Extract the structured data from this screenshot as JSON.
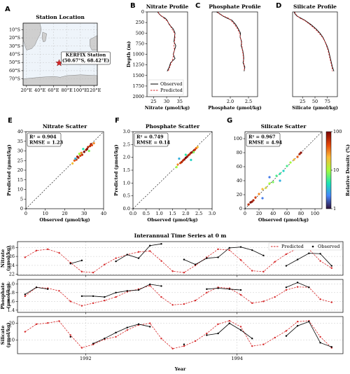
{
  "chart_data": [
    {
      "type": "map",
      "panel": "A",
      "title": "Station Location",
      "station": {
        "lon": 68.42,
        "lat": -50.67
      },
      "annotation": [
        "KERFIX Station",
        "(50.67°S, 68.42°E)"
      ],
      "xlim": [
        15,
        125
      ],
      "ylim": [
        -78,
        -2
      ],
      "xticks": [
        {
          "value": 20,
          "label": "20°E"
        },
        {
          "value": 40,
          "label": "40°E"
        },
        {
          "value": 60,
          "label": "60°E"
        },
        {
          "value": 80,
          "label": "80°E"
        },
        {
          "value": 100,
          "label": "100°E"
        },
        {
          "value": 120,
          "label": "120°E"
        }
      ],
      "yticks": [
        {
          "value": -10,
          "label": "10°S"
        },
        {
          "value": -20,
          "label": "20°S"
        },
        {
          "value": -30,
          "label": "30°S"
        },
        {
          "value": -40,
          "label": "40°S"
        },
        {
          "value": -50,
          "label": "50°S"
        },
        {
          "value": -60,
          "label": "60°S"
        },
        {
          "value": -70,
          "label": "70°S"
        }
      ],
      "color": "#d62728",
      "grid": true
    },
    {
      "type": "profile",
      "panel": "B",
      "title": "Nitrate Profile",
      "xlabel": "Nitrate (μmol/kg)",
      "ylabel": "Depth (m)",
      "y": [
        0,
        50,
        100,
        150,
        200,
        300,
        400,
        500,
        600,
        700,
        800,
        900,
        1000,
        1100,
        1200,
        1300,
        1400
      ],
      "series": [
        {
          "name": "Observed",
          "color": "#000000",
          "dash": false,
          "values": [
            26.5,
            27.2,
            28.0,
            29.5,
            30.2,
            31.0,
            32.5,
            33.2,
            33.0,
            32.8,
            33.5,
            33.0,
            32.5,
            33.2,
            31.5,
            31.0,
            30.2
          ]
        },
        {
          "name": "Predicted",
          "color": "#d62728",
          "dash": true,
          "values": [
            26.8,
            27.0,
            28.2,
            29.0,
            30.0,
            31.2,
            32.0,
            33.0,
            33.2,
            33.0,
            32.8,
            33.0,
            32.6,
            32.4,
            31.8,
            31.2,
            30.6
          ]
        }
      ],
      "xlim": [
        22.5,
        38
      ],
      "xticks": [
        25,
        30,
        35
      ],
      "ylim": [
        0,
        2000
      ],
      "invert_y": true,
      "yticks": [
        0,
        250,
        500,
        750,
        1000,
        1250,
        1500,
        1750,
        2000
      ],
      "legend": "lower left"
    },
    {
      "type": "profile",
      "panel": "C",
      "title": "Phosphate Profile",
      "xlabel": "Phosphate (μmol/kg)",
      "y": [
        0,
        50,
        100,
        150,
        200,
        300,
        400,
        500,
        600,
        700,
        800,
        900,
        1000,
        1100,
        1200,
        1300,
        1400
      ],
      "series": [
        {
          "color": "#000000",
          "dash": false,
          "values": [
            1.62,
            1.72,
            1.8,
            1.92,
            2.05,
            2.15,
            2.22,
            2.28,
            2.27,
            2.31,
            2.3,
            2.34,
            2.36,
            2.37,
            2.35,
            2.4,
            2.38
          ]
        },
        {
          "color": "#d62728",
          "dash": true,
          "values": [
            1.65,
            1.7,
            1.82,
            1.95,
            2.02,
            2.12,
            2.2,
            2.25,
            2.28,
            2.3,
            2.32,
            2.33,
            2.35,
            2.36,
            2.37,
            2.38,
            2.39
          ]
        }
      ],
      "xlim": [
        1.5,
        2.75
      ],
      "xticks": [
        {
          "value": 2,
          "label": "2.0"
        },
        2.5
      ],
      "ylim": [
        0,
        2000
      ],
      "invert_y": true
    },
    {
      "type": "profile",
      "panel": "D",
      "title": "Silicate Profile",
      "xlabel": "Silicate (μmol/kg)",
      "y": [
        0,
        50,
        100,
        150,
        200,
        300,
        400,
        500,
        600,
        700,
        800,
        900,
        1000,
        1100,
        1200,
        1300,
        1400
      ],
      "series": [
        {
          "color": "#000000",
          "dash": false,
          "values": [
            8,
            10,
            14,
            22,
            30,
            42,
            52,
            60,
            66,
            70,
            74,
            77,
            79,
            81,
            83,
            85,
            88
          ]
        },
        {
          "color": "#d62728",
          "dash": true,
          "values": [
            9,
            11,
            15,
            20,
            29,
            40,
            50,
            58,
            65,
            70,
            73,
            76,
            78,
            80,
            82,
            84,
            85
          ]
        }
      ],
      "xlim": [
        5,
        95
      ],
      "xticks": [
        25,
        50,
        75
      ],
      "ylim": [
        0,
        2000
      ],
      "invert_y": true
    },
    {
      "type": "scatter",
      "panel": "E",
      "title": "Nitrate Scatter",
      "xlabel": "Observed (μmol/kg)",
      "ylabel": "Predicted (μmol/kg)",
      "stats": [
        "R² = 0.904",
        "RMSE = 1.23"
      ],
      "x": [
        24,
        25,
        26,
        26.5,
        27,
        28,
        28.5,
        29,
        30,
        31,
        31.5,
        32,
        33,
        33.5,
        34,
        35,
        29.5,
        27.5,
        32.5,
        25.5
      ],
      "y": [
        23.5,
        25,
        25.5,
        27,
        26.5,
        27.5,
        29,
        28,
        29.5,
        30.5,
        31,
        32,
        32.5,
        33.5,
        33,
        34,
        31,
        28.5,
        30,
        26
      ],
      "density": [
        20,
        40,
        60,
        80,
        70,
        50,
        30,
        60,
        100,
        80,
        90,
        70,
        60,
        80,
        50,
        30,
        5,
        10,
        8,
        3
      ],
      "xlim": [
        0,
        40
      ],
      "ylim": [
        0,
        40
      ],
      "xticks": [
        0,
        10,
        20,
        30,
        40
      ],
      "yticks": [
        0,
        5,
        10,
        15,
        20,
        25,
        30,
        35,
        40
      ]
    },
    {
      "type": "scatter",
      "panel": "F",
      "title": "Phosphate Scatter",
      "xlabel": "Observed (μmol/kg)",
      "ylabel": "Predicted (μmol/kg)",
      "stats": [
        "R² = 0.749",
        "RMSE = 0.14"
      ],
      "x": [
        1.65,
        1.7,
        1.8,
        1.85,
        1.9,
        1.95,
        2.0,
        2.05,
        2.1,
        2.15,
        2.2,
        2.25,
        2.3,
        2.35,
        2.4,
        2.45,
        1.75,
        2.0,
        2.2,
        2.3
      ],
      "y": [
        1.62,
        1.72,
        1.78,
        1.82,
        1.88,
        1.92,
        1.98,
        2.02,
        2.08,
        2.12,
        2.18,
        2.2,
        2.25,
        2.3,
        2.36,
        2.4,
        1.95,
        2.1,
        1.9,
        2.2
      ],
      "density": [
        10,
        30,
        50,
        70,
        60,
        80,
        100,
        90,
        70,
        60,
        80,
        90,
        70,
        60,
        40,
        20,
        3,
        5,
        4,
        8
      ],
      "xlim": [
        0,
        3
      ],
      "ylim": [
        0,
        3
      ],
      "xticks": [
        {
          "value": 0,
          "label": "0.0"
        },
        0.5,
        {
          "value": 1,
          "label": "1.0"
        },
        1.5,
        {
          "value": 2,
          "label": "2.0"
        },
        2.5,
        {
          "value": 3,
          "label": "3.0"
        }
      ],
      "yticks": [
        {
          "value": 0,
          "label": "0.0"
        },
        0.5,
        {
          "value": 1,
          "label": "1.0"
        },
        1.5,
        {
          "value": 2,
          "label": "2.0"
        },
        2.5,
        {
          "value": 3,
          "label": "3.0"
        }
      ]
    },
    {
      "type": "scatter",
      "panel": "G",
      "title": "Silicate Scatter",
      "xlabel": "Observed (μmol/kg)",
      "stats": [
        "R² = 0.967",
        "RMSE = 4.94"
      ],
      "x": [
        5,
        8,
        10,
        12,
        15,
        20,
        25,
        30,
        35,
        40,
        45,
        50,
        55,
        60,
        65,
        70,
        75,
        78,
        80,
        35,
        50,
        25
      ],
      "y": [
        6,
        9,
        10,
        12,
        16,
        21,
        28,
        30,
        36,
        38,
        47,
        50,
        54,
        61,
        66,
        70,
        74,
        78,
        80,
        45,
        40,
        15
      ],
      "density": [
        60,
        100,
        80,
        70,
        50,
        30,
        20,
        15,
        10,
        8,
        6,
        5,
        4,
        6,
        10,
        20,
        40,
        70,
        90,
        2,
        3,
        2
      ],
      "xlim": [
        0,
        110
      ],
      "ylim": [
        0,
        110
      ],
      "xticks": [
        0,
        20,
        40,
        60,
        80,
        100
      ],
      "yticks": [
        0,
        20,
        40,
        60,
        80,
        100
      ],
      "colorbar": {
        "label": "Relative Density (%)",
        "lim": [
          1,
          100
        ],
        "ticks": [
          1,
          10,
          100
        ],
        "log": true
      }
    },
    {
      "type": "timeseries",
      "title": "Interannual Time Series at 0 m",
      "xlabel": "Year",
      "x": [
        1991.2,
        1991.35,
        1991.5,
        1991.65,
        1991.8,
        1991.95,
        1992.1,
        1992.25,
        1992.4,
        1992.55,
        1992.7,
        1992.85,
        1993.0,
        1993.15,
        1993.3,
        1993.45,
        1993.6,
        1993.75,
        1993.9,
        1994.05,
        1994.2,
        1994.35,
        1994.5,
        1994.65,
        1994.8,
        1994.95,
        1995.1,
        1995.25
      ],
      "xlim": [
        1991.1,
        1995.4
      ],
      "xticks": [
        1992,
        1994
      ],
      "grid": true,
      "legend": "upper right",
      "series": [
        {
          "name": "Predicted",
          "color": "#d62728",
          "dash": true
        },
        {
          "name": "Observed",
          "color": "#000000",
          "dash": false
        }
      ],
      "panels": [
        {
          "ylabel": [
            "Nitrate",
            "(μmol/kg)"
          ],
          "ylim": [
            21.8,
            29.3
          ],
          "yticks": [
            22,
            24,
            26,
            28
          ],
          "values": [
            [
              25.8,
              27.3,
              27.6,
              26.8,
              24.6,
              22.6,
              22.4,
              24.2,
              25.6,
              26.4,
              27.0,
              27.2,
              25.0,
              22.7,
              22.4,
              24.0,
              25.8,
              27.6,
              27.4,
              25.2,
              22.8,
              22.6,
              24.8,
              26.5,
              27.8,
              27.6,
              25.0,
              23.4
            ],
            [
              null,
              null,
              null,
              null,
              24.4,
              25.1,
              null,
              null,
              24.9,
              26.4,
              25.6,
              28.4,
              28.8,
              null,
              25.3,
              24.2,
              25.6,
              25.8,
              27.9,
              28.1,
              27.4,
              26.2,
              null,
              23.9,
              25.3,
              26.7,
              26.6,
              23.9
            ]
          ]
        },
        {
          "ylabel": [
            "Phosphate",
            "(μmol/kg)"
          ],
          "ylim": [
            1.35,
            2.1
          ],
          "yticks": [
            1.4,
            1.6,
            1.8,
            {
              "value": 2,
              "label": "2.0"
            }
          ],
          "values": [
            [
              1.72,
              1.92,
              1.9,
              1.84,
              1.6,
              1.5,
              1.56,
              1.62,
              1.7,
              1.82,
              1.88,
              1.96,
              1.7,
              1.52,
              1.54,
              1.62,
              1.8,
              1.92,
              1.9,
              1.75,
              1.56,
              1.6,
              1.7,
              1.86,
              1.93,
              1.92,
              1.65,
              1.58
            ],
            [
              1.76,
              1.92,
              1.88,
              null,
              null,
              1.72,
              1.72,
              1.7,
              1.8,
              1.84,
              1.86,
              1.99,
              1.95,
              null,
              null,
              null,
              1.88,
              1.9,
              1.88,
              1.86,
              null,
              null,
              null,
              1.92,
              2.03,
              1.92,
              null,
              null
            ]
          ]
        },
        {
          "ylabel": [
            "Silicate",
            "(μmol/kg)"
          ],
          "ylim": [
            2,
            24
          ],
          "yticks": [
            10,
            20
          ],
          "values": [
            [
              15.0,
              19.5,
              20.2,
              21.3,
              13.0,
              5.5,
              7.5,
              10.5,
              12.0,
              16.0,
              19.0,
              20.0,
              11.0,
              5.0,
              6.5,
              9.5,
              14.0,
              19.5,
              21.5,
              18.0,
              6.5,
              7.5,
              11.5,
              15.5,
              21.0,
              21.5,
              12.0,
              5.5
            ],
            [
              null,
              null,
              null,
              null,
              12.0,
              null,
              8.0,
              11.0,
              14.5,
              17.5,
              19.5,
              18.0,
              null,
              null,
              7.5,
              null,
              13.0,
              14.0,
              20.0,
              16.0,
              11.0,
              null,
              null,
              12.5,
              18.5,
              21.0,
              8.5,
              6.0
            ]
          ]
        }
      ]
    }
  ]
}
